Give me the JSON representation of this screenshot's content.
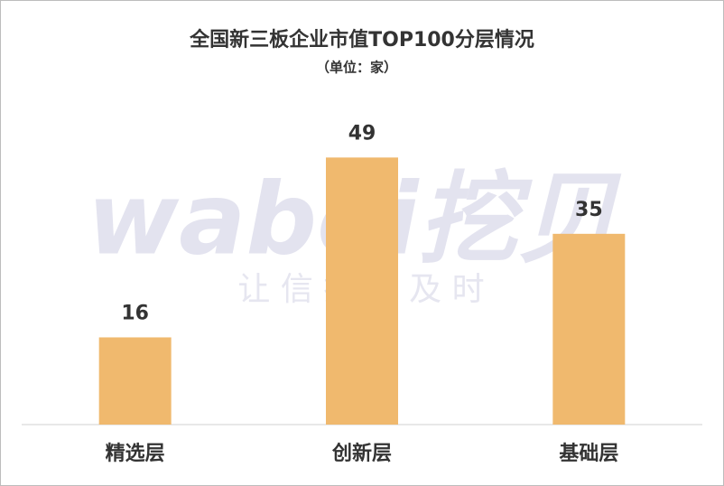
{
  "chart_data": {
    "type": "bar",
    "title": "全国新三板企业市值TOP100分层情况",
    "subtitle": "（单位：家）",
    "categories": [
      "精选层",
      "创新层",
      "基础层"
    ],
    "values": [
      16,
      49,
      35
    ],
    "color": "#f0b96e",
    "ylim": [
      0,
      60
    ],
    "watermark": "wabei挖贝",
    "watermark_tagline": "让 信 披 更 及 时"
  }
}
